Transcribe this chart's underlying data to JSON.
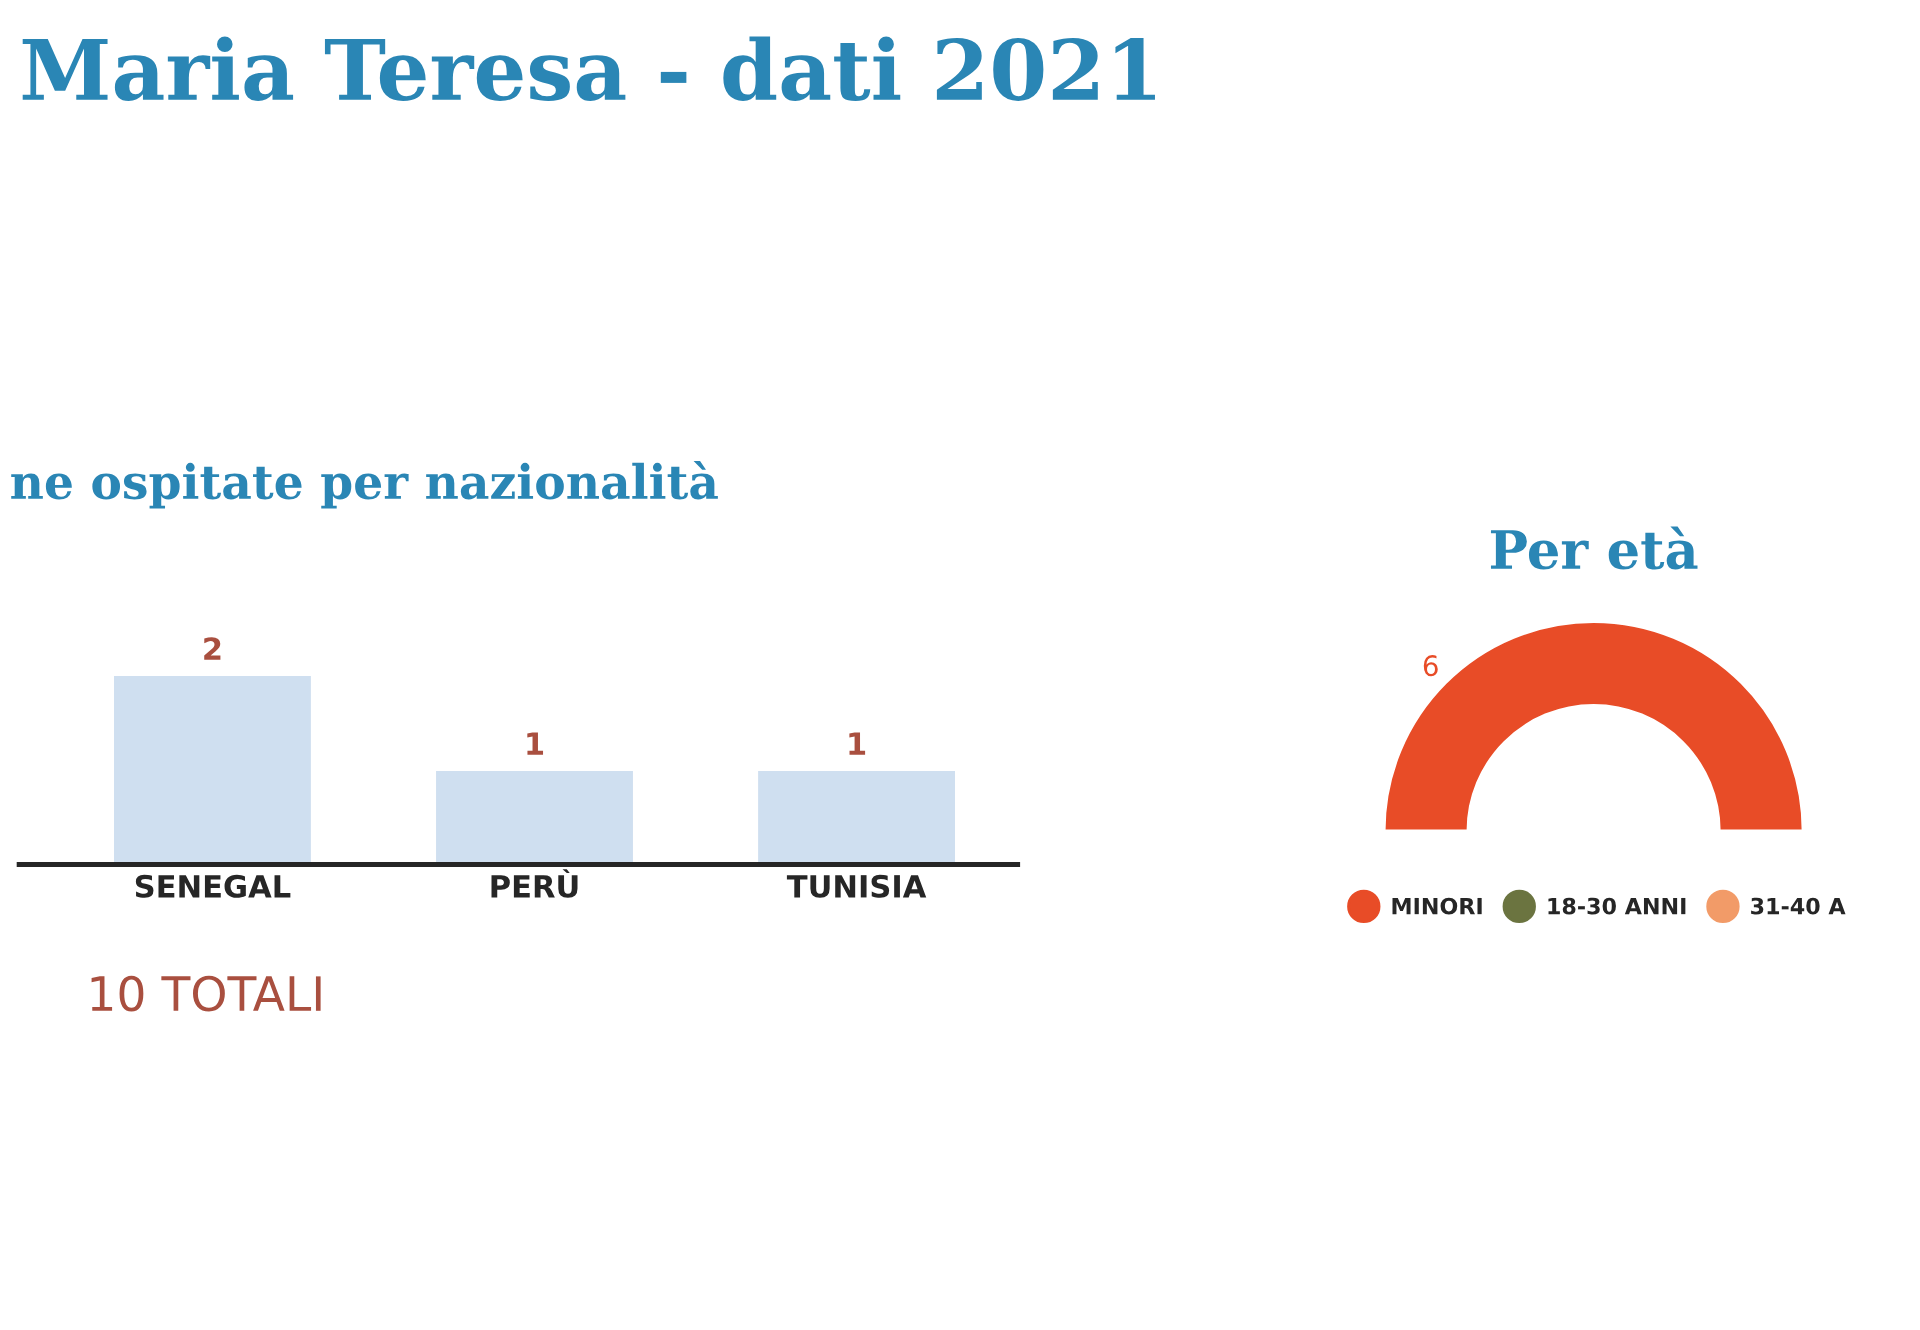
{
  "chart_data": [
    {
      "type": "bar",
      "title": "Maria Teresa - dati 2021",
      "subtitle": "ne ospitate per nazionalità",
      "categories": [
        "SENEGAL",
        "PERÙ",
        "TUNISIA"
      ],
      "values": [
        2,
        1,
        1
      ],
      "color": "#cfdff0",
      "data_labels": true,
      "annotations": [
        "10 TOTALI"
      ]
    },
    {
      "type": "pie",
      "title": "Per età",
      "categories": [
        "MINORI",
        "18-30 ANNI",
        "31-40 A"
      ],
      "values": [
        6,
        null,
        null
      ],
      "colors": [
        "#e84c27",
        "#6b7440",
        "#f29b68"
      ],
      "value_labels": [
        "6",
        null,
        null
      ],
      "legend": "bottom"
    }
  ]
}
